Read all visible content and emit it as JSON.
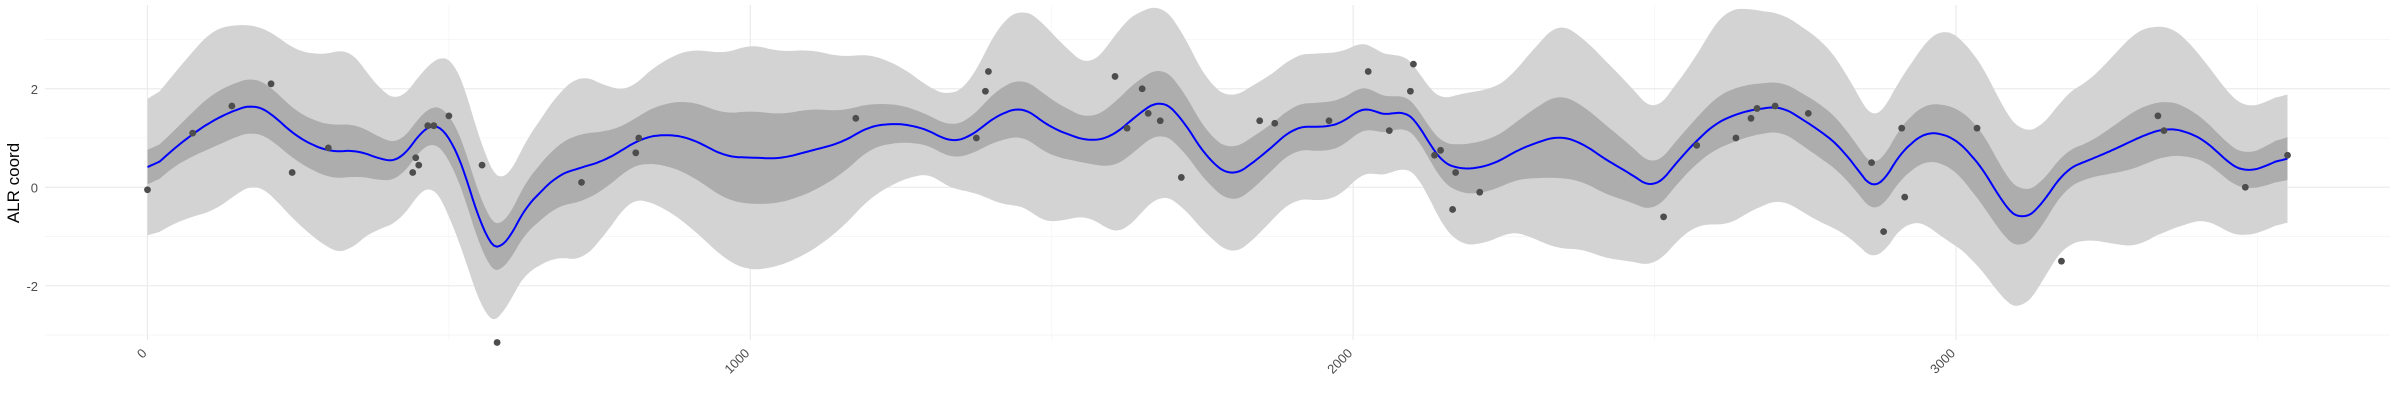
{
  "chart_data": {
    "type": "line",
    "title": "",
    "xlabel": "",
    "ylabel": "ALR coord",
    "xlim": [
      -170,
      3720
    ],
    "ylim": [
      -3.1,
      3.7
    ],
    "x_ticks": [
      0,
      1000,
      2000,
      3000
    ],
    "y_ticks": [
      -2,
      0,
      2
    ],
    "grid": true,
    "legend": "none",
    "colors": {
      "line": "#0000ff",
      "inner_band": "#adadad",
      "outer_band": "#d3d3d3",
      "points": "#4d4d4d",
      "grid_major": "#ebebeb",
      "grid_minor": "#f5f5f5"
    },
    "series": [
      {
        "role": "mean",
        "x": [
          0,
          50,
          100,
          150,
          180,
          200,
          250,
          300,
          350,
          390,
          420,
          460,
          480,
          500,
          530,
          560,
          590,
          620,
          680,
          760,
          820,
          860,
          900,
          960,
          1050,
          1150,
          1200,
          1250,
          1300,
          1330,
          1370,
          1400,
          1450,
          1500,
          1560,
          1600,
          1640,
          1680,
          1710,
          1760,
          1800,
          1850,
          1900,
          1930,
          1950,
          1990,
          2020,
          2050,
          2080,
          2110,
          2140,
          2180,
          2230,
          2280,
          2340,
          2380,
          2420,
          2450,
          2500,
          2550,
          2600,
          2650,
          2710,
          2740,
          2780,
          2810,
          2840,
          2870,
          2900,
          2950,
          3000,
          3050,
          3080,
          3110,
          3140,
          3180,
          3250,
          3320,
          3350,
          3380,
          3420,
          3450,
          3480,
          3520,
          3550
        ],
        "values": [
          0.3,
          0.85,
          1.3,
          1.6,
          1.68,
          1.55,
          1.0,
          0.72,
          0.75,
          0.55,
          0.52,
          1.25,
          1.3,
          1.1,
          0.2,
          -1.1,
          -1.35,
          -0.5,
          0.25,
          0.55,
          1.0,
          1.08,
          1.0,
          0.62,
          0.58,
          0.9,
          1.25,
          1.3,
          1.15,
          0.9,
          1.05,
          1.4,
          1.65,
          1.2,
          0.93,
          1.02,
          1.45,
          1.8,
          1.5,
          0.55,
          0.2,
          0.65,
          1.2,
          1.25,
          1.2,
          1.35,
          1.7,
          1.4,
          1.6,
          1.3,
          0.55,
          0.35,
          0.45,
          0.8,
          1.05,
          0.9,
          0.55,
          0.35,
          -0.05,
          0.7,
          1.3,
          1.55,
          1.65,
          1.42,
          1.1,
          0.8,
          0.3,
          -0.15,
          0.6,
          1.15,
          1.0,
          0.3,
          -0.4,
          -0.7,
          -0.4,
          0.35,
          0.7,
          1.1,
          1.2,
          1.15,
          0.9,
          0.5,
          0.3,
          0.45,
          0.65
        ]
      },
      {
        "role": "inner-band-halfwidth",
        "x": [
          0,
          40,
          110,
          180,
          250,
          330,
          380,
          420,
          470,
          510,
          560,
          600,
          640,
          720,
          800,
          900,
          1000,
          1100,
          1200,
          1300,
          1360,
          1420,
          1480,
          1560,
          1620,
          1700,
          1760,
          1820,
          1880,
          1960,
          2010,
          2060,
          2120,
          2180,
          2260,
          2340,
          2420,
          2500,
          2560,
          2620,
          2700,
          2780,
          2860,
          2920,
          2980,
          3040,
          3100,
          3160,
          3220,
          3300,
          3360,
          3420,
          3480,
          3550
        ],
        "values": [
          0.35,
          0.35,
          0.55,
          0.55,
          0.5,
          0.55,
          0.45,
          0.35,
          0.35,
          0.5,
          0.5,
          0.45,
          0.55,
          0.7,
          0.45,
          0.75,
          0.95,
          0.85,
          0.45,
          0.3,
          0.35,
          0.55,
          0.6,
          0.45,
          0.7,
          0.65,
          0.5,
          0.55,
          0.45,
          0.5,
          0.45,
          0.35,
          0.3,
          0.5,
          0.55,
          0.85,
          0.7,
          0.45,
          0.45,
          0.55,
          0.5,
          0.55,
          0.45,
          0.55,
          0.6,
          0.75,
          0.6,
          0.4,
          0.35,
          0.6,
          0.55,
          0.4,
          0.35,
          0.45
        ]
      },
      {
        "role": "outer-band-halfwidth",
        "x": [
          0,
          40,
          110,
          180,
          250,
          330,
          380,
          420,
          470,
          510,
          560,
          600,
          640,
          720,
          800,
          900,
          1000,
          1100,
          1200,
          1300,
          1360,
          1420,
          1480,
          1560,
          1620,
          1700,
          1760,
          1820,
          1880,
          1960,
          2010,
          2060,
          2120,
          2180,
          2260,
          2340,
          2420,
          2500,
          2560,
          2620,
          2700,
          2780,
          2860,
          2920,
          2980,
          3040,
          3100,
          3160,
          3220,
          3300,
          3360,
          3420,
          3480,
          3550
        ],
        "values": [
          1.35,
          1.5,
          1.85,
          1.6,
          1.75,
          2.1,
          1.45,
          1.2,
          1.2,
          1.75,
          1.65,
          1.25,
          1.4,
          1.9,
          1.1,
          1.8,
          2.3,
          2.05,
          1.45,
          0.85,
          1.05,
          1.9,
          2.05,
          1.5,
          2.15,
          1.85,
          1.55,
          1.6,
          1.45,
          1.5,
          1.35,
          1.2,
          1.05,
          1.55,
          1.55,
          2.3,
          2.0,
          1.55,
          1.65,
          2.2,
          1.9,
          1.85,
          1.4,
          1.55,
          2.15,
          2.1,
          1.85,
          1.5,
          1.6,
          2.2,
          2.05,
          1.55,
          1.3,
          1.3
        ]
      },
      {
        "role": "observations",
        "x": [
          0,
          75,
          140,
          205,
          240,
          300,
          440,
          445,
          450,
          465,
          475,
          500,
          555,
          580,
          720,
          810,
          815,
          1175,
          1375,
          1390,
          1395,
          1605,
          1625,
          1650,
          1660,
          1680,
          1715,
          1845,
          1870,
          1960,
          2025,
          2060,
          2095,
          2100,
          2135,
          2145,
          2165,
          2170,
          2210,
          2515,
          2570,
          2635,
          2660,
          2670,
          2700,
          2755,
          2860,
          2880,
          2915,
          2910,
          3035,
          3175,
          3335,
          3345,
          3480,
          3550
        ],
        "values": [
          -0.05,
          1.1,
          1.65,
          2.1,
          0.3,
          0.8,
          0.3,
          0.6,
          0.45,
          1.25,
          1.25,
          1.45,
          0.45,
          -3.15,
          0.1,
          0.7,
          1.0,
          1.4,
          1.0,
          1.95,
          2.35,
          2.25,
          1.2,
          2.0,
          1.5,
          1.35,
          0.2,
          1.35,
          1.3,
          1.35,
          2.35,
          1.15,
          1.95,
          2.5,
          0.65,
          0.75,
          -0.45,
          0.3,
          -0.1,
          -0.6,
          0.85,
          1.0,
          1.4,
          1.6,
          1.65,
          1.5,
          0.5,
          -0.9,
          -0.2,
          1.2,
          1.2,
          -1.5,
          1.45,
          1.15,
          0.0,
          0.65
        ]
      }
    ]
  }
}
